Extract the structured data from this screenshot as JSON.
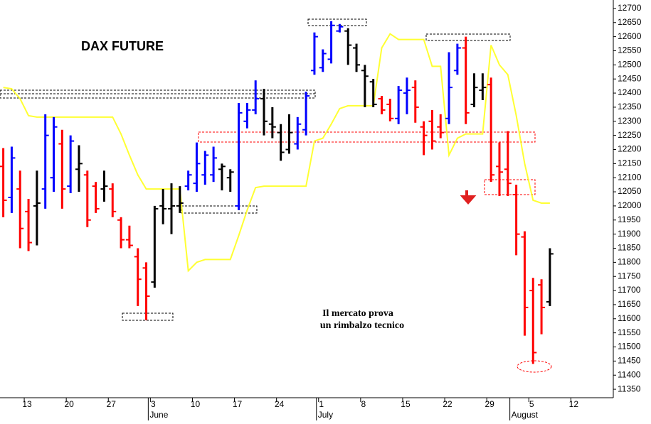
{
  "chart_data": {
    "type": "ohlc",
    "title": "DAX FUTURE",
    "annotation": [
      "Il mercato prova",
      "un rimbalzo tecnico"
    ],
    "categories": [
      null,
      null,
      null,
      "13",
      null,
      null,
      null,
      null,
      "20",
      null,
      null,
      null,
      null,
      "27",
      null,
      null,
      null,
      null,
      "3",
      null,
      null,
      null,
      null,
      "10",
      null,
      null,
      null,
      null,
      "17",
      null,
      null,
      null,
      null,
      "24",
      null,
      null,
      null,
      null,
      "1",
      null,
      null,
      null,
      null,
      "8",
      null,
      null,
      null,
      null,
      "15",
      null,
      null,
      null,
      null,
      "22",
      null,
      null,
      null,
      null,
      "29",
      null,
      null,
      null,
      null,
      "5",
      null,
      null,
      null,
      null,
      "12"
    ],
    "month_ticks": [
      {
        "value": 18,
        "label": "June"
      },
      {
        "value": 38,
        "label": "July"
      },
      {
        "value": 61,
        "label": "August"
      }
    ],
    "open": [
      12140,
      12030,
      12060,
      11980,
      12000,
      12060,
      12100,
      12220,
      12070,
      12130,
      12110,
      12070,
      12060,
      12060,
      11950,
      11880,
      11820,
      11780,
      11730,
      12000,
      11990,
      12000,
      12070,
      12080,
      12110,
      12110,
      12130,
      12100,
      12000,
      12300,
      12340,
      12380,
      12290,
      12260,
      12200,
      12220,
      12270,
      12480,
      12490,
      12520,
      12620,
      12620,
      12560,
      12480,
      12440,
      12380,
      12360,
      12310,
      12400,
      12420,
      12280,
      12300,
      12280,
      12310,
      12480,
      12560,
      12360,
      12410,
      12430,
      12140,
      12130,
      12040,
      11890,
      11700,
      11720,
      11660,
      null,
      null,
      null
    ],
    "high": [
      12205,
      12210,
      12125,
      12025,
      12125,
      12325,
      12315,
      12270,
      12250,
      12215,
      12125,
      12085,
      12125,
      12080,
      11960,
      11930,
      11850,
      11800,
      12000,
      12060,
      12080,
      12070,
      12125,
      12225,
      12195,
      12210,
      12150,
      12130,
      12365,
      12365,
      12445,
      12415,
      12350,
      12290,
      12325,
      12315,
      12405,
      12615,
      12555,
      12655,
      12645,
      12630,
      12575,
      12500,
      12450,
      12390,
      12380,
      12425,
      12455,
      12445,
      12300,
      12340,
      12325,
      12545,
      12575,
      12600,
      12470,
      12470,
      12455,
      12225,
      12265,
      12075,
      11910,
      11745,
      11740,
      11850,
      null,
      null,
      null
    ],
    "low": [
      11960,
      11975,
      11850,
      11840,
      11860,
      11990,
      12050,
      11990,
      12045,
      12050,
      11925,
      11975,
      12015,
      11960,
      11850,
      11850,
      11645,
      11595,
      11710,
      11935,
      11900,
      11975,
      12055,
      12050,
      12075,
      12085,
      12055,
      12050,
      11985,
      12275,
      12325,
      12250,
      12240,
      12160,
      12185,
      12200,
      12250,
      12465,
      12475,
      12505,
      12615,
      12500,
      12475,
      12350,
      12350,
      12325,
      12300,
      12290,
      12325,
      12295,
      12180,
      12200,
      12240,
      12290,
      12465,
      12290,
      12350,
      12375,
      12085,
      12035,
      12035,
      11825,
      11540,
      11440,
      11545,
      11645,
      null,
      null,
      null
    ],
    "close": [
      12020,
      12170,
      11920,
      11870,
      12010,
      12250,
      12280,
      12060,
      12230,
      12150,
      11950,
      11990,
      12070,
      11980,
      11880,
      11860,
      11740,
      11680,
      11990,
      11990,
      12000,
      12010,
      12110,
      12150,
      12180,
      12170,
      12140,
      12120,
      12330,
      12340,
      12380,
      12300,
      12280,
      12190,
      12260,
      12290,
      12390,
      12600,
      12540,
      12640,
      12635,
      12570,
      12500,
      12460,
      12360,
      12340,
      12310,
      12410,
      12410,
      12350,
      12250,
      12230,
      12260,
      12420,
      12560,
      12330,
      12420,
      12420,
      12110,
      12120,
      12080,
      11900,
      11640,
      11480,
      11640,
      11830,
      null,
      null,
      null
    ],
    "bar_colors": [
      "r",
      "b",
      "r",
      "r",
      "k",
      "b",
      "b",
      "r",
      "b",
      "k",
      "r",
      "r",
      "k",
      "r",
      "r",
      "r",
      "r",
      "r",
      "k",
      "k",
      "k",
      "k",
      "b",
      "b",
      "b",
      "b",
      "k",
      "k",
      "b",
      "b",
      "b",
      "k",
      "k",
      "k",
      "k",
      "b",
      "b",
      "b",
      "b",
      "b",
      "b",
      "k",
      "k",
      "k",
      "k",
      "r",
      "r",
      "b",
      "b",
      "r",
      "r",
      "r",
      "r",
      "b",
      "b",
      "r",
      "k",
      "k",
      "r",
      "r",
      "r",
      "r",
      "r",
      "r",
      "r",
      "k",
      null,
      null,
      null
    ],
    "palette": {
      "r": "#ff0000",
      "b": "#0000ff",
      "k": "#000000"
    },
    "line": {
      "color": "#ffff33",
      "values": [
        12420,
        12415,
        12380,
        12320,
        12315,
        12315,
        12315,
        12315,
        12315,
        12315,
        12315,
        12315,
        12315,
        12315,
        12255,
        12180,
        12110,
        12060,
        12060,
        12060,
        12060,
        12060,
        11770,
        11800,
        11810,
        11810,
        11810,
        11810,
        11895,
        11985,
        12065,
        12070,
        12070,
        12070,
        12070,
        12070,
        12070,
        12230,
        12240,
        12290,
        12345,
        12355,
        12355,
        12355,
        12355,
        12560,
        12610,
        12590,
        12590,
        12590,
        12590,
        12495,
        12495,
        12180,
        12240,
        12255,
        12255,
        12255,
        12570,
        12500,
        12465,
        12320,
        12150,
        12020,
        12010,
        12010,
        null,
        null,
        null
      ]
    },
    "ylim": [
      11320,
      12730
    ],
    "yticks": [
      11350,
      11400,
      11450,
      11500,
      11550,
      11600,
      11650,
      11700,
      11750,
      11800,
      11850,
      11900,
      11950,
      12000,
      12050,
      12100,
      12150,
      12200,
      12250,
      12300,
      12350,
      12400,
      12450,
      12500,
      12550,
      12600,
      12650,
      12700
    ]
  }
}
